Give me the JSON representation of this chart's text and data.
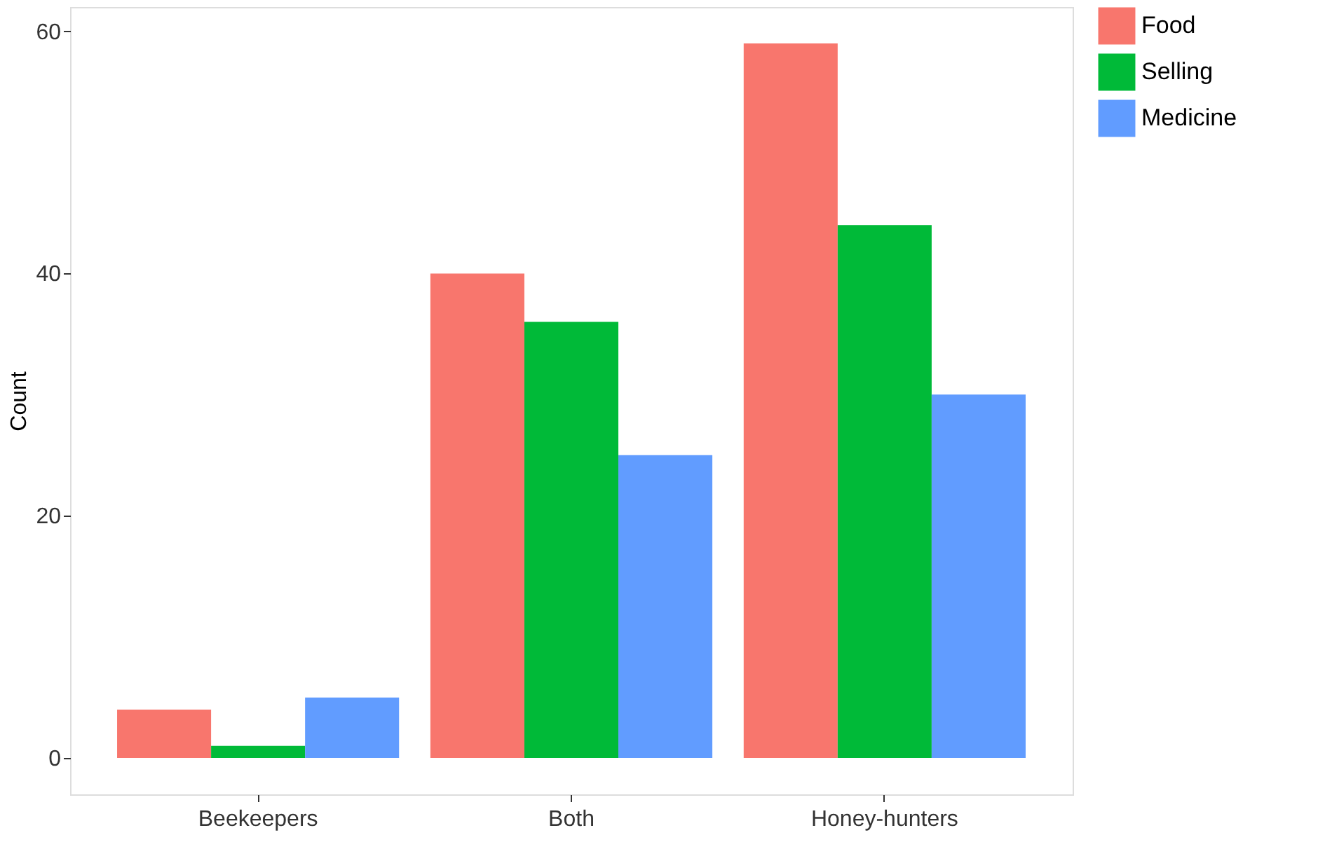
{
  "chart_data": {
    "type": "bar",
    "ylabel": "Count",
    "categories": [
      "Beekeepers",
      "Both",
      "Honey-hunters"
    ],
    "series": [
      {
        "name": "Food",
        "color": "#f8766d",
        "values": [
          4,
          40,
          59
        ]
      },
      {
        "name": "Selling",
        "color": "#00ba38",
        "values": [
          1,
          36,
          44
        ]
      },
      {
        "name": "Medicine",
        "color": "#619cff",
        "values": [
          5,
          25,
          30
        ]
      }
    ],
    "ylim": [
      -3,
      62
    ],
    "yticks": [
      0,
      20,
      40,
      60
    ],
    "grid": false,
    "legend": "right"
  }
}
